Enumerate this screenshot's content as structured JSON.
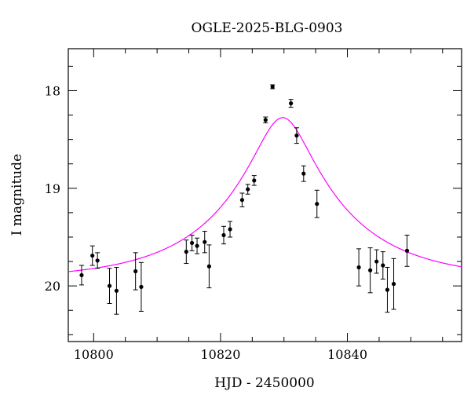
{
  "chart_data": {
    "type": "scatter",
    "title": "OGLE-2025-BLG-0903",
    "xlabel": "HJD - 2450000",
    "ylabel": "I magnitude",
    "xlim": [
      10796,
      10858
    ],
    "ylim": [
      20.57,
      17.57
    ],
    "y_inverted": true,
    "grid": false,
    "x_major_ticks": [
      10800,
      10820,
      10840
    ],
    "x_minor_step": 5,
    "y_major_ticks": [
      18,
      19,
      20
    ],
    "y_minor_step": 0.25,
    "colors": {
      "data": "#000000",
      "model": "#ff00ff",
      "axes": "#000000"
    },
    "series": [
      {
        "kind": "points_with_errorbars",
        "points": [
          {
            "x": 10798.1,
            "y": 19.89,
            "err": 0.1
          },
          {
            "x": 10799.8,
            "y": 19.69,
            "err": 0.1
          },
          {
            "x": 10800.6,
            "y": 19.74,
            "err": 0.08
          },
          {
            "x": 10802.5,
            "y": 20.0,
            "err": 0.18
          },
          {
            "x": 10803.6,
            "y": 20.05,
            "err": 0.24
          },
          {
            "x": 10806.6,
            "y": 19.85,
            "err": 0.19
          },
          {
            "x": 10807.5,
            "y": 20.01,
            "err": 0.25
          },
          {
            "x": 10814.6,
            "y": 19.65,
            "err": 0.12
          },
          {
            "x": 10815.5,
            "y": 19.56,
            "err": 0.08
          },
          {
            "x": 10816.3,
            "y": 19.59,
            "err": 0.08
          },
          {
            "x": 10817.5,
            "y": 19.55,
            "err": 0.11
          },
          {
            "x": 10818.2,
            "y": 19.8,
            "err": 0.22
          },
          {
            "x": 10820.5,
            "y": 19.48,
            "err": 0.09
          },
          {
            "x": 10821.5,
            "y": 19.42,
            "err": 0.08
          },
          {
            "x": 10823.4,
            "y": 19.12,
            "err": 0.07
          },
          {
            "x": 10824.3,
            "y": 19.01,
            "err": 0.05
          },
          {
            "x": 10825.3,
            "y": 18.92,
            "err": 0.05
          },
          {
            "x": 10827.1,
            "y": 18.3,
            "err": 0.03
          },
          {
            "x": 10828.2,
            "y": 17.96,
            "err": 0.02
          },
          {
            "x": 10831.1,
            "y": 18.13,
            "err": 0.04
          },
          {
            "x": 10832.0,
            "y": 18.46,
            "err": 0.08
          },
          {
            "x": 10833.1,
            "y": 18.85,
            "err": 0.08
          },
          {
            "x": 10835.2,
            "y": 19.16,
            "err": 0.14
          },
          {
            "x": 10841.8,
            "y": 19.81,
            "err": 0.19
          },
          {
            "x": 10843.6,
            "y": 19.84,
            "err": 0.23
          },
          {
            "x": 10844.6,
            "y": 19.75,
            "err": 0.12
          },
          {
            "x": 10845.6,
            "y": 19.79,
            "err": 0.14
          },
          {
            "x": 10846.3,
            "y": 20.04,
            "err": 0.23
          },
          {
            "x": 10847.3,
            "y": 19.98,
            "err": 0.26
          },
          {
            "x": 10849.4,
            "y": 19.64,
            "err": 0.16
          }
        ]
      },
      {
        "kind": "model_curve",
        "model": "pspl",
        "t0": 10829.8,
        "u0": 0.22,
        "tE": 19.0,
        "i_base": 19.94,
        "x_range": [
          10796,
          10858
        ]
      }
    ]
  }
}
